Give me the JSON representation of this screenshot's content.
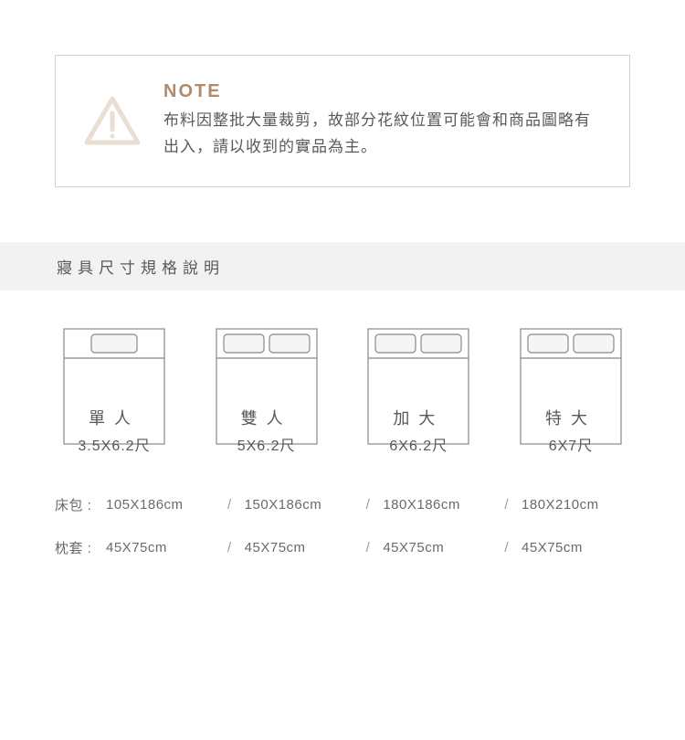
{
  "note": {
    "title": "NOTE",
    "body": "布料因整批大量裁剪，故部分花紋位置可能會和商品圖略有出入，請以收到的實品為主。",
    "title_color": "#b08a6a",
    "text_color": "#595959",
    "border_color": "#d0d0d0",
    "icon_stroke": "#e8ded2",
    "icon_fill": "#e8ded2"
  },
  "section_title": "寢具尺寸規格說明",
  "section_bg": "#f2f2f2",
  "bed_stroke": "#888888",
  "bed_pillow_fill": "#f5f5f5",
  "beds": [
    {
      "name": "單人",
      "size": "3.5X6.2尺",
      "pillows": 1
    },
    {
      "name": "雙人",
      "size": "5X6.2尺",
      "pillows": 2
    },
    {
      "name": "加大",
      "size": "6X6.2尺",
      "pillows": 2
    },
    {
      "name": "特大",
      "size": "6X7尺",
      "pillows": 2
    }
  ],
  "specs": [
    {
      "label": "床包 :",
      "values": [
        "105X186cm",
        "150X186cm",
        "180X186cm",
        "180X210cm"
      ]
    },
    {
      "label": "枕套 :",
      "values": [
        "45X75cm",
        "45X75cm",
        "45X75cm",
        "45X75cm"
      ]
    }
  ],
  "separator": "/"
}
